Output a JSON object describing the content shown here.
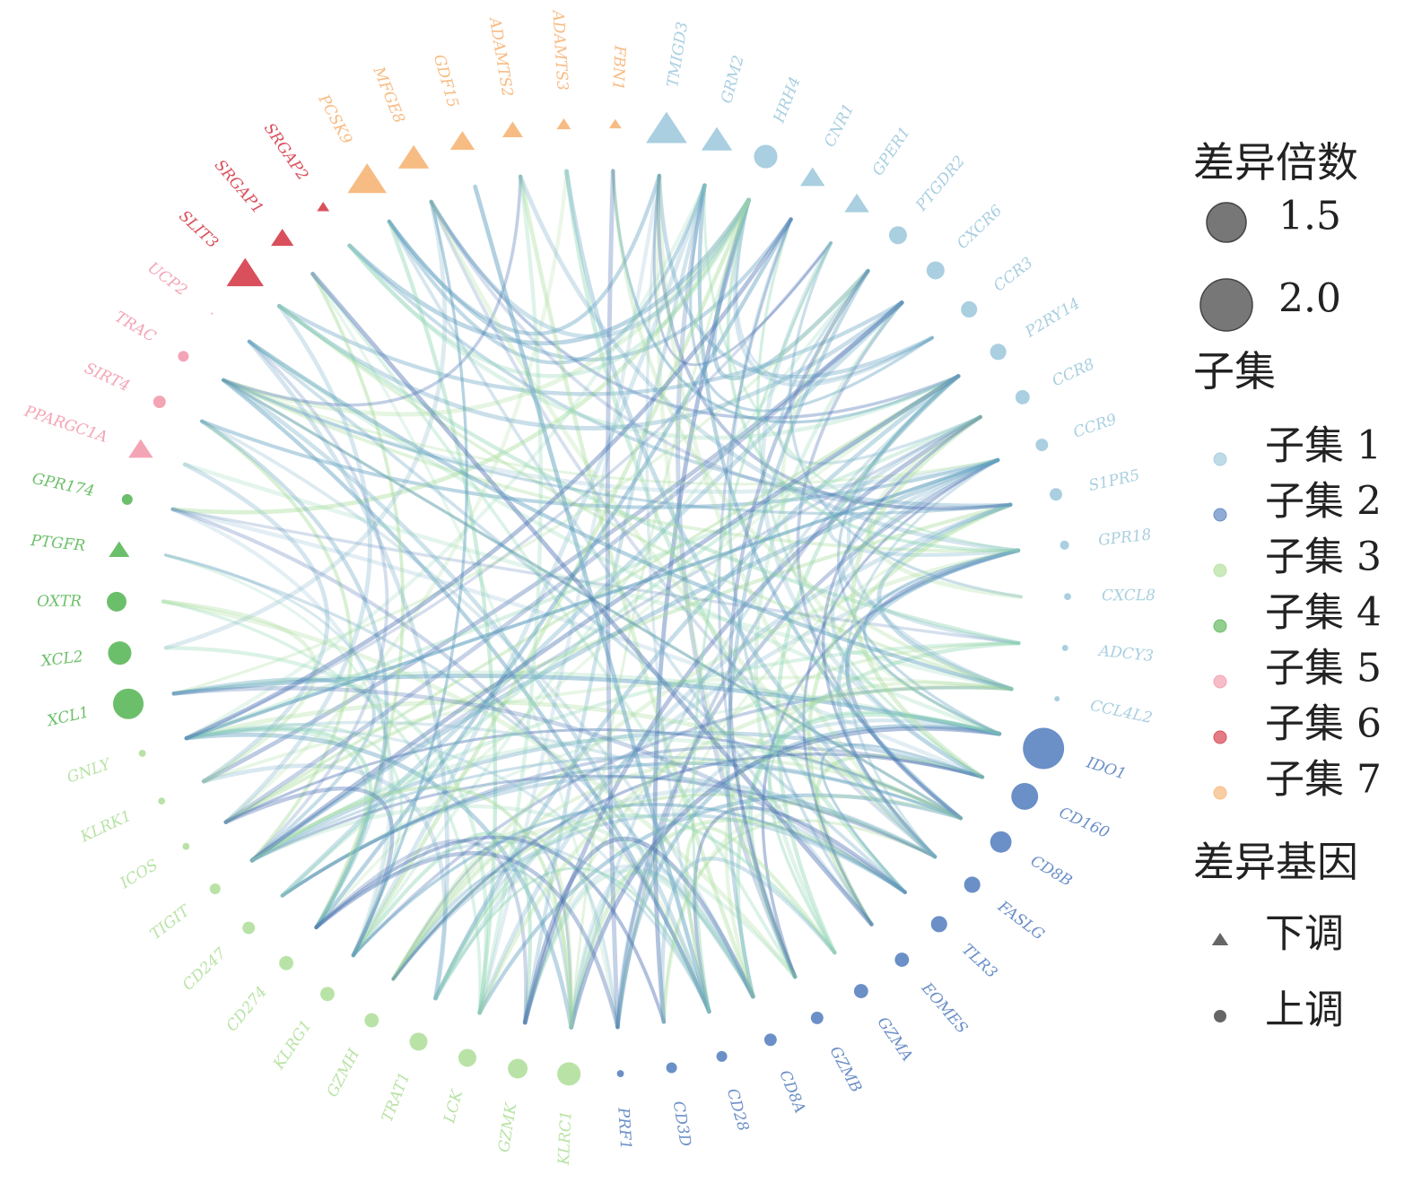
{
  "chart_data": {
    "type": "network",
    "nodes": [
      {
        "label": "TMIGD3",
        "subset": "子集 1",
        "regulation": "下调",
        "fold_change": 1.37
      },
      {
        "label": "GRM2",
        "subset": "子集 1",
        "regulation": "下调",
        "fold_change": 1.06
      },
      {
        "label": "HRH4",
        "subset": "子集 1",
        "regulation": "上调",
        "fold_change": 0.94
      },
      {
        "label": "CNR1",
        "subset": "子集 1",
        "regulation": "下调",
        "fold_change": 0.87
      },
      {
        "label": "GPER1",
        "subset": "子集 1",
        "regulation": "下调",
        "fold_change": 0.87
      },
      {
        "label": "PTGDR2",
        "subset": "子集 1",
        "regulation": "上调",
        "fold_change": 0.75
      },
      {
        "label": "CXCR6",
        "subset": "子集 1",
        "regulation": "上调",
        "fold_change": 0.75
      },
      {
        "label": "CCR3",
        "subset": "子集 1",
        "regulation": "上调",
        "fold_change": 0.69
      },
      {
        "label": "P2RY14",
        "subset": "子集 1",
        "regulation": "上调",
        "fold_change": 0.69
      },
      {
        "label": "CCR8",
        "subset": "子集 1",
        "regulation": "上调",
        "fold_change": 0.62
      },
      {
        "label": "CCR9",
        "subset": "子集 1",
        "regulation": "上调",
        "fold_change": 0.56
      },
      {
        "label": "S1PR5",
        "subset": "子集 1",
        "regulation": "上调",
        "fold_change": 0.56
      },
      {
        "label": "GPR18",
        "subset": "子集 1",
        "regulation": "上调",
        "fold_change": 0.44
      },
      {
        "label": "CXCL8",
        "subset": "子集 1",
        "regulation": "上调",
        "fold_change": 0.37
      },
      {
        "label": "ADCY3",
        "subset": "子集 1",
        "regulation": "上调",
        "fold_change": 0.34
      },
      {
        "label": "CCL4L2",
        "subset": "子集 1",
        "regulation": "上调",
        "fold_change": 0.31
      },
      {
        "label": "IDO1",
        "subset": "子集 2",
        "regulation": "上调",
        "fold_change": 1.56
      },
      {
        "label": "CD160",
        "subset": "子集 2",
        "regulation": "上调",
        "fold_change": 1.06
      },
      {
        "label": "CD8B",
        "subset": "子集 2",
        "regulation": "上调",
        "fold_change": 0.87
      },
      {
        "label": "FASLG",
        "subset": "子集 2",
        "regulation": "上调",
        "fold_change": 0.69
      },
      {
        "label": "TLR3",
        "subset": "子集 2",
        "regulation": "上调",
        "fold_change": 0.69
      },
      {
        "label": "EOMES",
        "subset": "子集 2",
        "regulation": "上调",
        "fold_change": 0.62
      },
      {
        "label": "GZMA",
        "subset": "子集 2",
        "regulation": "上调",
        "fold_change": 0.62
      },
      {
        "label": "GZMB",
        "subset": "子集 2",
        "regulation": "上调",
        "fold_change": 0.56
      },
      {
        "label": "CD8A",
        "subset": "子集 2",
        "regulation": "上调",
        "fold_change": 0.56
      },
      {
        "label": "CD28",
        "subset": "子集 2",
        "regulation": "上调",
        "fold_change": 0.5
      },
      {
        "label": "CD3D",
        "subset": "子集 2",
        "regulation": "上调",
        "fold_change": 0.5
      },
      {
        "label": "PRF1",
        "subset": "子集 2",
        "regulation": "上调",
        "fold_change": 0.37
      },
      {
        "label": "KLRC1",
        "subset": "子集 3",
        "regulation": "上调",
        "fold_change": 0.94
      },
      {
        "label": "GZMK",
        "subset": "子集 3",
        "regulation": "上调",
        "fold_change": 0.81
      },
      {
        "label": "LCK",
        "subset": "子集 3",
        "regulation": "上调",
        "fold_change": 0.75
      },
      {
        "label": "TRAT1",
        "subset": "子集 3",
        "regulation": "上调",
        "fold_change": 0.75
      },
      {
        "label": "GZMH",
        "subset": "子集 3",
        "regulation": "上调",
        "fold_change": 0.62
      },
      {
        "label": "KLRG1",
        "subset": "子集 3",
        "regulation": "上调",
        "fold_change": 0.62
      },
      {
        "label": "CD274",
        "subset": "子集 3",
        "regulation": "上调",
        "fold_change": 0.62
      },
      {
        "label": "CD247",
        "subset": "子集 3",
        "regulation": "上调",
        "fold_change": 0.56
      },
      {
        "label": "TIGIT",
        "subset": "子集 3",
        "regulation": "上调",
        "fold_change": 0.5
      },
      {
        "label": "ICOS",
        "subset": "子集 3",
        "regulation": "上调",
        "fold_change": 0.37
      },
      {
        "label": "KLRK1",
        "subset": "子集 3",
        "regulation": "上调",
        "fold_change": 0.37
      },
      {
        "label": "GNLY",
        "subset": "子集 3",
        "regulation": "上调",
        "fold_change": 0.37
      },
      {
        "label": "XCL1",
        "subset": "子集 4",
        "regulation": "上调",
        "fold_change": 1.19
      },
      {
        "label": "XCL2",
        "subset": "子集 4",
        "regulation": "上调",
        "fold_change": 0.94
      },
      {
        "label": "OXTR",
        "subset": "子集 4",
        "regulation": "上调",
        "fold_change": 0.81
      },
      {
        "label": "PTGFR",
        "subset": "子集 4",
        "regulation": "下调",
        "fold_change": 0.75
      },
      {
        "label": "GPR174",
        "subset": "子集 4",
        "regulation": "上调",
        "fold_change": 0.5
      },
      {
        "label": "PPARGC1A",
        "subset": "子集 5",
        "regulation": "下调",
        "fold_change": 0.87
      },
      {
        "label": "SIRT4",
        "subset": "子集 5",
        "regulation": "上调",
        "fold_change": 0.56
      },
      {
        "label": "TRAC",
        "subset": "子集 5",
        "regulation": "上调",
        "fold_change": 0.5
      },
      {
        "label": "UCP2",
        "subset": "子集 5",
        "regulation": "上调",
        "fold_change": 0.19
      },
      {
        "label": "SLIT3",
        "subset": "子集 6",
        "regulation": "下调",
        "fold_change": 1.25
      },
      {
        "label": "SRGAP1",
        "subset": "子集 6",
        "regulation": "下调",
        "fold_change": 0.81
      },
      {
        "label": "SRGAP2",
        "subset": "子集 6",
        "regulation": "下调",
        "fold_change": 0.5
      },
      {
        "label": "PCSK9",
        "subset": "子集 7",
        "regulation": "下调",
        "fold_change": 1.31
      },
      {
        "label": "MFGE8",
        "subset": "子集 7",
        "regulation": "下调",
        "fold_change": 1.06
      },
      {
        "label": "GDF15",
        "subset": "子集 7",
        "regulation": "下调",
        "fold_change": 0.87
      },
      {
        "label": "ADAMTS2",
        "subset": "子集 7",
        "regulation": "下调",
        "fold_change": 0.75
      },
      {
        "label": "ADAMTS3",
        "subset": "子集 7",
        "regulation": "下调",
        "fold_change": 0.56
      },
      {
        "label": "FBN1",
        "subset": "子集 7",
        "regulation": "下调",
        "fold_change": 0.5
      }
    ],
    "legend": {
      "size_title": "差异倍数",
      "sizes": [
        1.5,
        {
          "value": 2,
          "label": "2.0"
        }
      ],
      "subset_title": "子集",
      "subsets": [
        {
          "name": "子集 1",
          "color": "#a9cfe0"
        },
        {
          "name": "子集 2",
          "color": "#6b8fc7"
        },
        {
          "name": "子集 3",
          "color": "#b9e3a6"
        },
        {
          "name": "子集 4",
          "color": "#6cbf6a"
        },
        {
          "name": "子集 5",
          "color": "#f3a5b6"
        },
        {
          "name": "子集 6",
          "color": "#d9505c"
        },
        {
          "name": "子集 7",
          "color": "#f7bc84"
        }
      ],
      "regulation_title": "差异基因",
      "regulations": [
        {
          "name": "下调",
          "shape": "triangle"
        },
        {
          "name": "上调",
          "shape": "circle"
        }
      ]
    }
  }
}
